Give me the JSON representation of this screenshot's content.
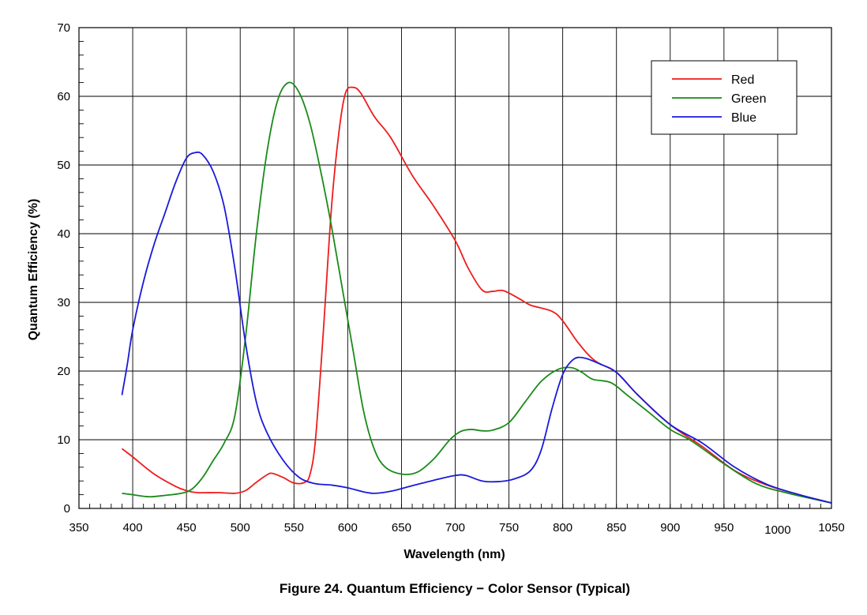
{
  "chart_data": {
    "type": "line",
    "xlabel": "Wavelength (nm)",
    "ylabel": "Quantum Efficiency (%)",
    "caption": "Figure 24. Quantum Efficiency − Color Sensor (Typical)",
    "xlim": [
      350,
      1050
    ],
    "ylim": [
      0,
      70
    ],
    "x_ticks": [
      "350",
      "400",
      "450",
      "500",
      "550",
      "600",
      "650",
      "700",
      "750",
      "800",
      "850",
      "900",
      "950",
      "1000",
      "1050"
    ],
    "y_ticks": [
      "0",
      "10",
      "20",
      "30",
      "40",
      "50",
      "60",
      "70"
    ],
    "grid": true,
    "legend_position": "top-right",
    "series": [
      {
        "name": "Red",
        "color": "#ee1c1c",
        "points": [
          [
            390,
            8.7
          ],
          [
            400,
            7.5
          ],
          [
            420,
            5.0
          ],
          [
            440,
            3.2
          ],
          [
            450,
            2.6
          ],
          [
            460,
            2.3
          ],
          [
            480,
            2.3
          ],
          [
            495,
            2.2
          ],
          [
            505,
            2.6
          ],
          [
            515,
            3.8
          ],
          [
            525,
            4.9
          ],
          [
            530,
            5.1
          ],
          [
            540,
            4.5
          ],
          [
            550,
            3.7
          ],
          [
            560,
            3.8
          ],
          [
            565,
            5.0
          ],
          [
            570,
            10.0
          ],
          [
            577,
            25.0
          ],
          [
            585,
            44.0
          ],
          [
            592,
            55.0
          ],
          [
            598,
            60.5
          ],
          [
            605,
            61.3
          ],
          [
            612,
            60.5
          ],
          [
            625,
            57.0
          ],
          [
            640,
            54.0
          ],
          [
            660,
            48.5
          ],
          [
            680,
            44.0
          ],
          [
            700,
            39.0
          ],
          [
            712,
            35.0
          ],
          [
            725,
            31.8
          ],
          [
            735,
            31.6
          ],
          [
            745,
            31.7
          ],
          [
            760,
            30.5
          ],
          [
            770,
            29.6
          ],
          [
            790,
            28.7
          ],
          [
            800,
            27.3
          ],
          [
            815,
            24.0
          ],
          [
            830,
            21.5
          ],
          [
            850,
            19.8
          ],
          [
            870,
            16.5
          ],
          [
            900,
            12.2
          ],
          [
            930,
            9.0
          ],
          [
            960,
            5.5
          ],
          [
            990,
            3.4
          ],
          [
            1020,
            2.0
          ],
          [
            1050,
            0.8
          ]
        ]
      },
      {
        "name": "Green",
        "color": "#1a8a1a",
        "points": [
          [
            390,
            2.2
          ],
          [
            400,
            2.0
          ],
          [
            415,
            1.7
          ],
          [
            430,
            1.9
          ],
          [
            445,
            2.2
          ],
          [
            455,
            2.8
          ],
          [
            465,
            4.5
          ],
          [
            475,
            7.0
          ],
          [
            485,
            9.5
          ],
          [
            495,
            13.5
          ],
          [
            505,
            25.0
          ],
          [
            515,
            40.0
          ],
          [
            525,
            52.0
          ],
          [
            535,
            59.5
          ],
          [
            545,
            62.0
          ],
          [
            555,
            60.5
          ],
          [
            565,
            56.0
          ],
          [
            575,
            49.0
          ],
          [
            585,
            41.0
          ],
          [
            595,
            32.0
          ],
          [
            605,
            23.0
          ],
          [
            615,
            14.0
          ],
          [
            625,
            8.5
          ],
          [
            635,
            6.0
          ],
          [
            650,
            5.0
          ],
          [
            665,
            5.3
          ],
          [
            680,
            7.2
          ],
          [
            695,
            10.0
          ],
          [
            705,
            11.2
          ],
          [
            715,
            11.5
          ],
          [
            725,
            11.3
          ],
          [
            735,
            11.4
          ],
          [
            750,
            12.5
          ],
          [
            765,
            15.5
          ],
          [
            780,
            18.5
          ],
          [
            795,
            20.2
          ],
          [
            808,
            20.5
          ],
          [
            818,
            19.8
          ],
          [
            828,
            18.8
          ],
          [
            845,
            18.3
          ],
          [
            860,
            16.5
          ],
          [
            880,
            14.0
          ],
          [
            900,
            11.5
          ],
          [
            920,
            9.8
          ],
          [
            950,
            6.5
          ],
          [
            980,
            3.6
          ],
          [
            1010,
            2.2
          ],
          [
            1050,
            0.8
          ]
        ]
      },
      {
        "name": "Blue",
        "color": "#1a1adb",
        "points": [
          [
            390,
            16.5
          ],
          [
            395,
            21.0
          ],
          [
            400,
            26.0
          ],
          [
            410,
            33.0
          ],
          [
            420,
            38.5
          ],
          [
            430,
            43.0
          ],
          [
            440,
            47.5
          ],
          [
            450,
            51.0
          ],
          [
            458,
            51.8
          ],
          [
            465,
            51.5
          ],
          [
            475,
            49.0
          ],
          [
            485,
            44.0
          ],
          [
            495,
            35.0
          ],
          [
            505,
            24.0
          ],
          [
            515,
            15.5
          ],
          [
            525,
            11.0
          ],
          [
            540,
            7.0
          ],
          [
            555,
            4.5
          ],
          [
            570,
            3.6
          ],
          [
            585,
            3.4
          ],
          [
            600,
            3.0
          ],
          [
            615,
            2.4
          ],
          [
            625,
            2.2
          ],
          [
            640,
            2.5
          ],
          [
            660,
            3.3
          ],
          [
            680,
            4.1
          ],
          [
            700,
            4.8
          ],
          [
            710,
            4.8
          ],
          [
            725,
            4.0
          ],
          [
            740,
            3.9
          ],
          [
            755,
            4.3
          ],
          [
            770,
            5.5
          ],
          [
            780,
            8.5
          ],
          [
            790,
            14.5
          ],
          [
            800,
            19.5
          ],
          [
            810,
            21.7
          ],
          [
            820,
            21.9
          ],
          [
            835,
            21.0
          ],
          [
            850,
            19.8
          ],
          [
            870,
            16.5
          ],
          [
            900,
            12.2
          ],
          [
            930,
            9.5
          ],
          [
            960,
            6.0
          ],
          [
            990,
            3.5
          ],
          [
            1020,
            2.0
          ],
          [
            1050,
            0.8
          ]
        ]
      }
    ]
  }
}
